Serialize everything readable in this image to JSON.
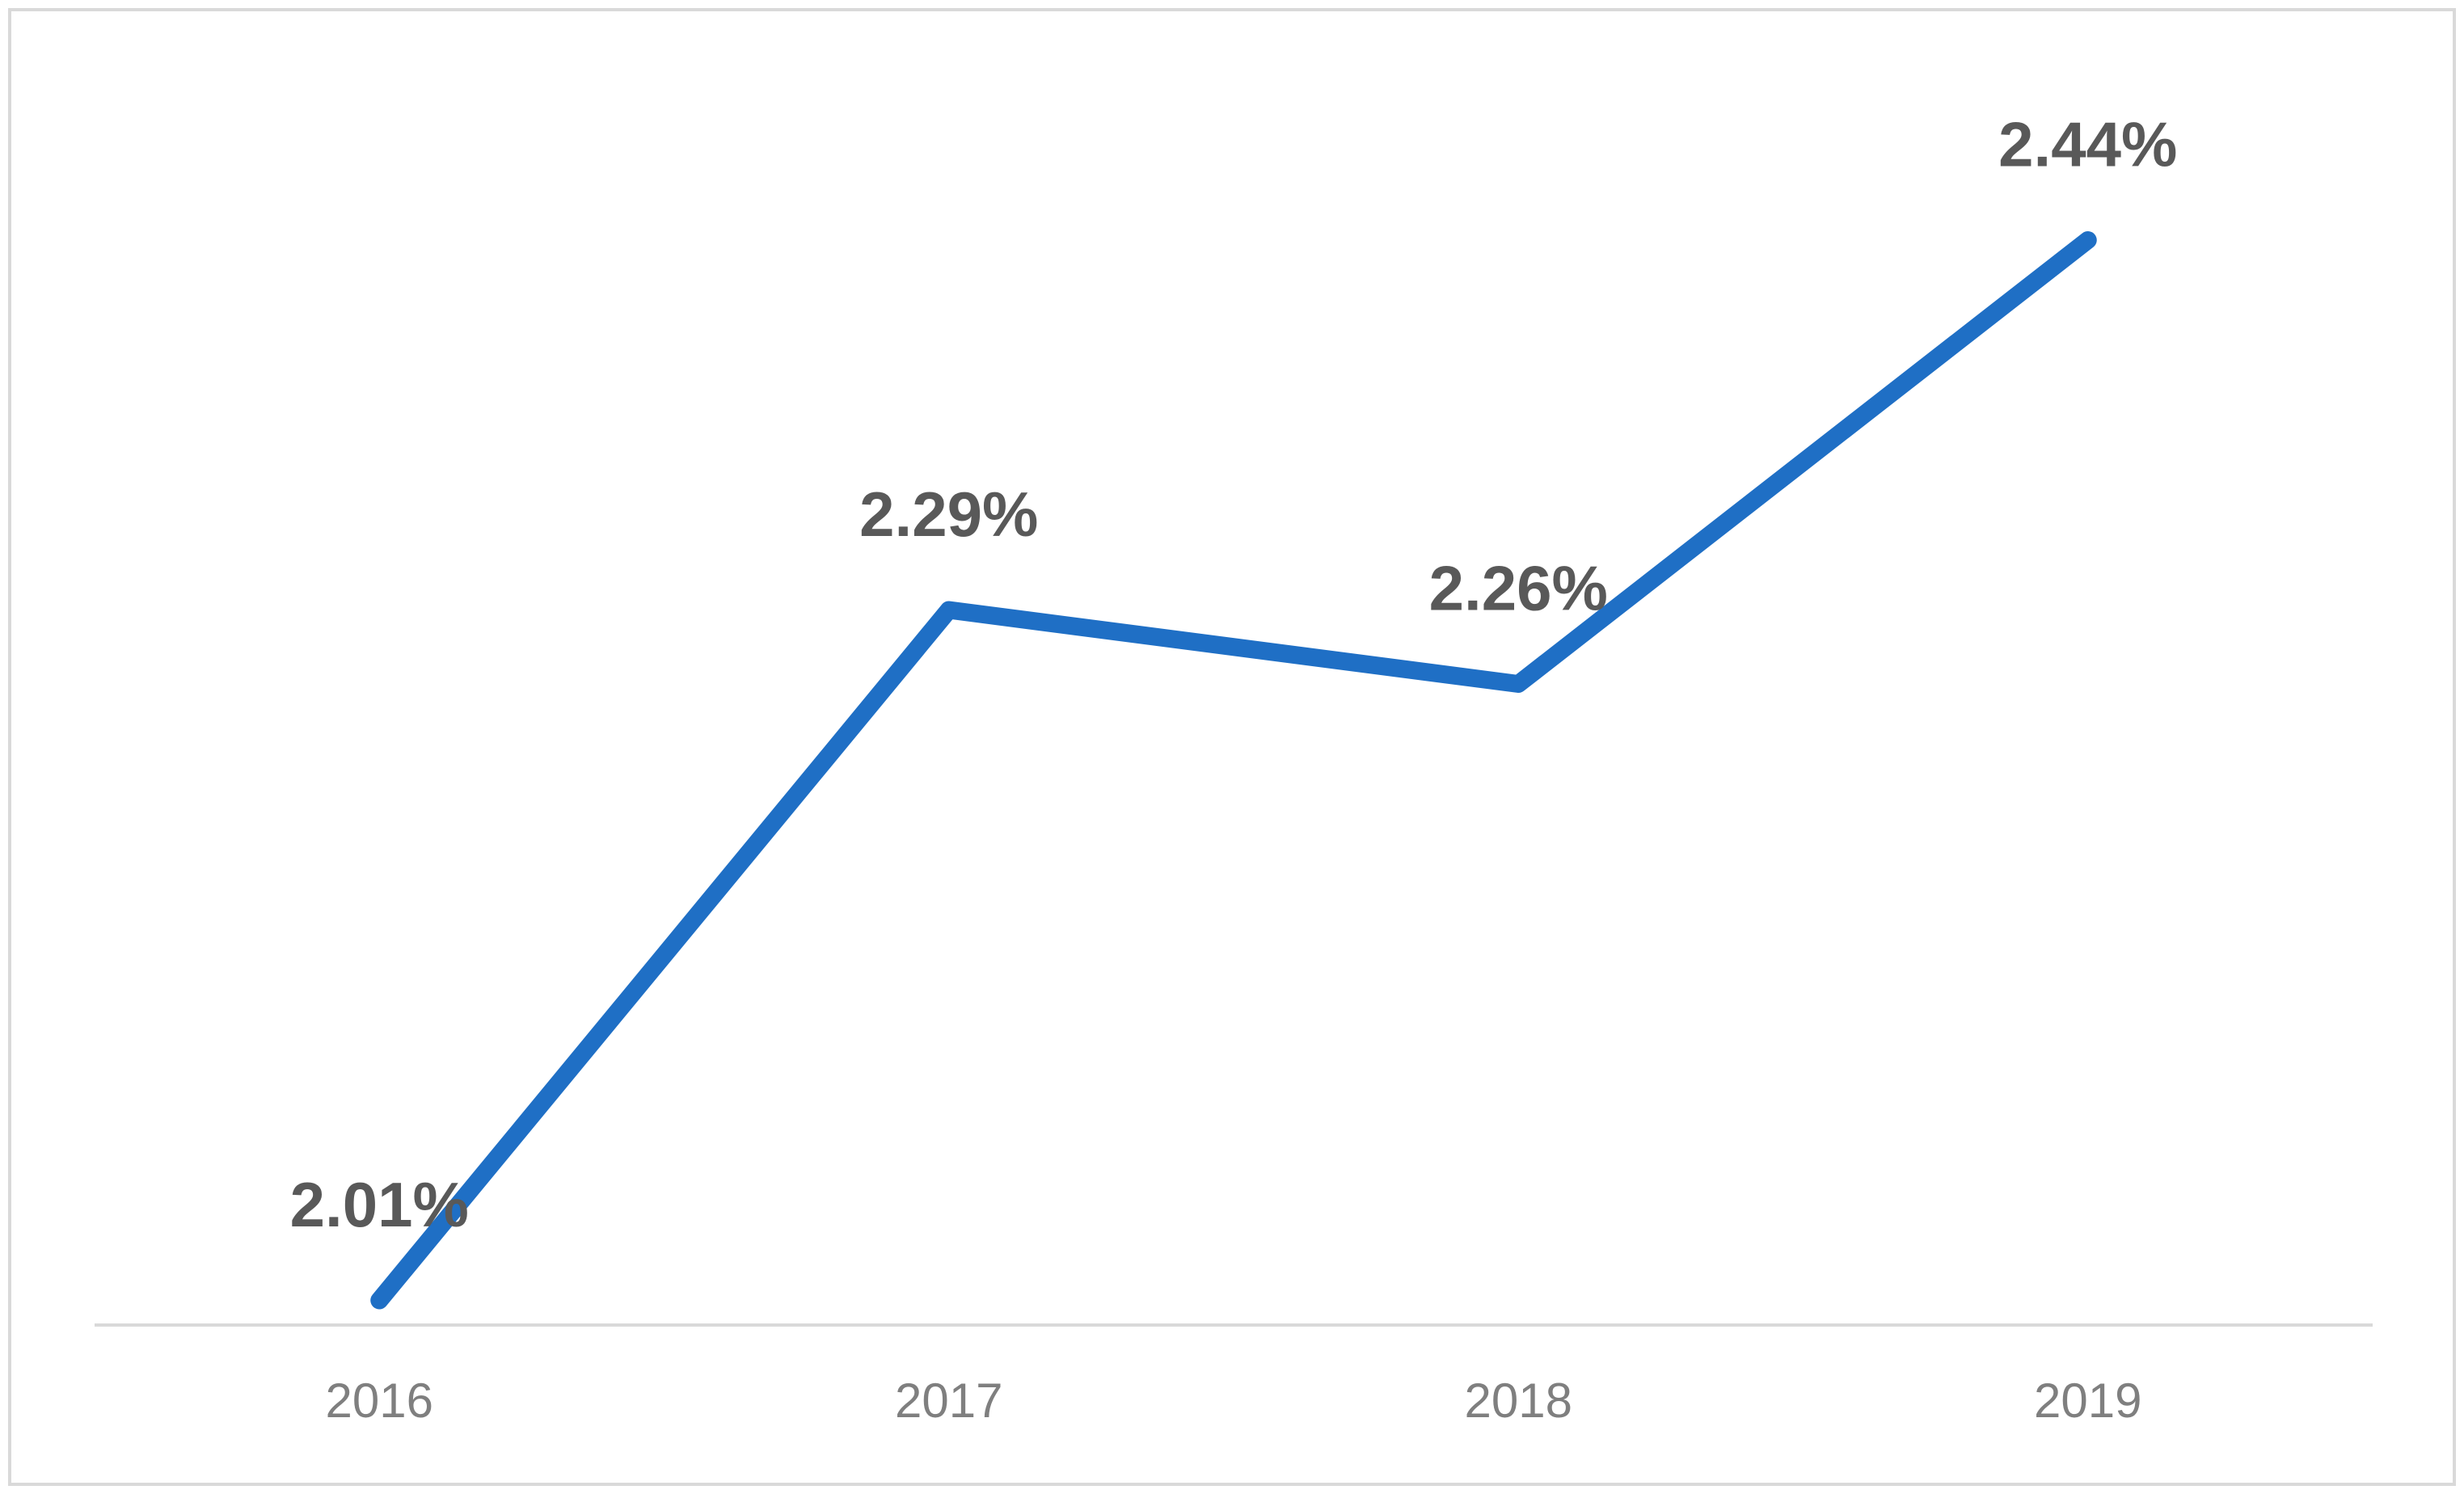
{
  "chart_data": {
    "type": "line",
    "categories": [
      "2016",
      "2017",
      "2018",
      "2019"
    ],
    "series": [
      {
        "color": "#1f6fc5",
        "values": [
          2.01,
          2.29,
          2.26,
          2.44
        ],
        "value_labels": [
          "2.01%",
          "2.29%",
          "2.26%",
          "2.44%"
        ]
      }
    ],
    "ylim": [
      2.0,
      2.5
    ]
  }
}
